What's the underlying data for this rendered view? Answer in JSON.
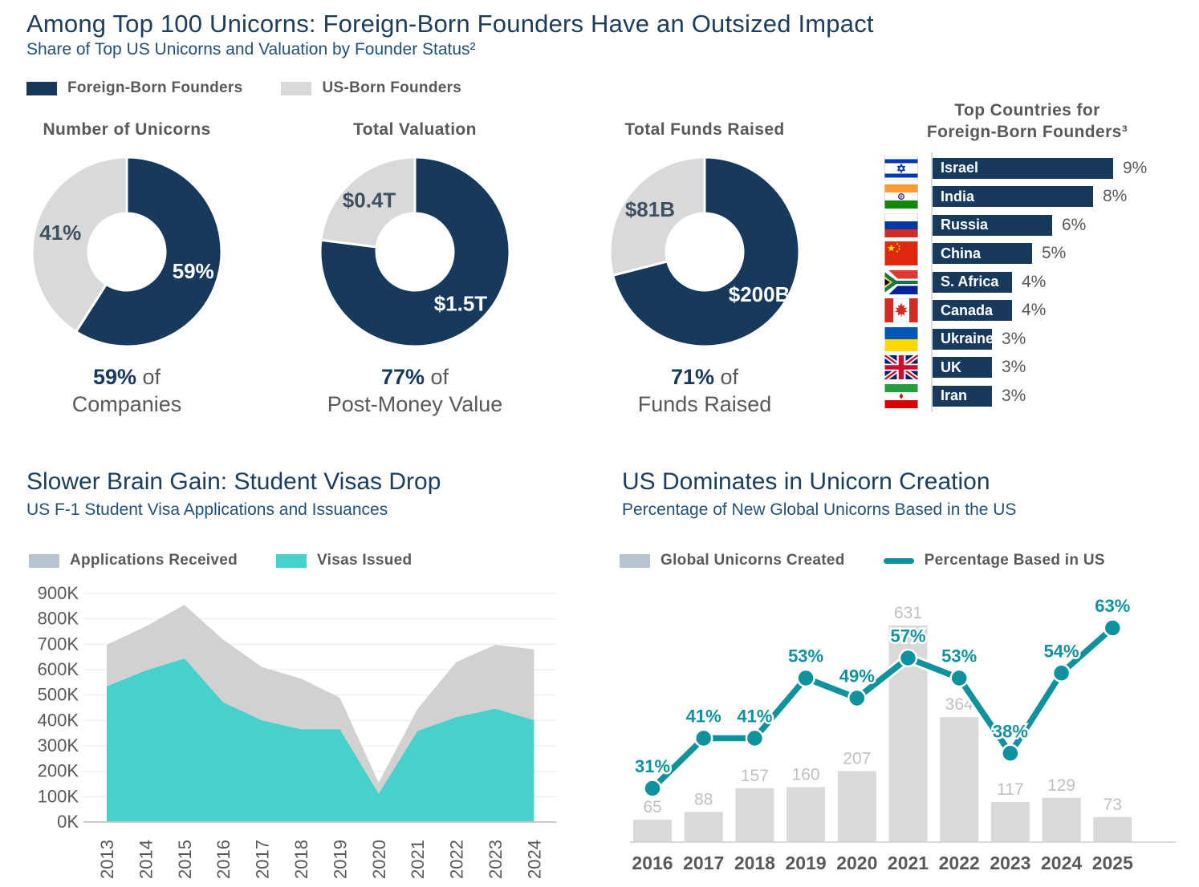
{
  "colors": {
    "navy": "#17395c",
    "donut_gray": "#d9d9d9",
    "legend_gray_blue": "#b8c4d0",
    "area_gray": "#d1d1d1",
    "teal_area": "#46d1cd",
    "teal_line": "#0f929e",
    "text_gray": "#595959",
    "bar_value_gray": "#c0c0c0",
    "slice_dark_label": "#3f5061"
  },
  "header": {
    "title": "Among Top 100 Unicorns: Foreign-Born Founders Have an Outsized Impact",
    "subtitle": "Share of Top US Unicorns and Valuation by Founder Status²",
    "legend": [
      {
        "label": "Foreign-Born Founders",
        "color": "#17395c"
      },
      {
        "label": "US-Born Founders",
        "color": "#d9d9d9"
      }
    ]
  },
  "chart_data": [
    {
      "id": "unicorn-count-donut",
      "type": "pie",
      "title": "Number of Unicorns",
      "series": [
        "Foreign-Born Founders",
        "US-Born Founders"
      ],
      "values": [
        59,
        41
      ],
      "slice_labels": [
        "59%",
        "41%"
      ],
      "colors": [
        "#17395c",
        "#d9d9d9"
      ],
      "label_colors": [
        "#ffffff",
        "#3f5061"
      ],
      "caption": {
        "highlight": "59%",
        "rest": "of",
        "line2": "Companies"
      }
    },
    {
      "id": "valuation-donut",
      "type": "pie",
      "title": "Total Valuation",
      "series": [
        "Foreign-Born Founders",
        "US-Born Founders"
      ],
      "values": [
        77,
        23
      ],
      "slice_labels": [
        "$1.5T",
        "$0.4T"
      ],
      "colors": [
        "#17395c",
        "#d9d9d9"
      ],
      "label_colors": [
        "#ffffff",
        "#3f5061"
      ],
      "caption": {
        "highlight": "77%",
        "rest": "of",
        "line2": "Post-Money Value"
      }
    },
    {
      "id": "funds-raised-donut",
      "type": "pie",
      "title": "Total Funds Raised",
      "series": [
        "Foreign-Born Founders",
        "US-Born Founders"
      ],
      "values": [
        71,
        29
      ],
      "slice_labels": [
        "$200B",
        "$81B"
      ],
      "colors": [
        "#17395c",
        "#d9d9d9"
      ],
      "label_colors": [
        "#ffffff",
        "#3f5061"
      ],
      "caption": {
        "highlight": "71%",
        "rest": "of",
        "line2": "Funds Raised"
      }
    },
    {
      "id": "top-countries-bar",
      "type": "bar",
      "orientation": "horizontal",
      "title_lines": [
        "Top Countries for",
        "Foreign-Born Founders³"
      ],
      "categories": [
        "Israel",
        "India",
        "Russia",
        "China",
        "S. Africa",
        "Canada",
        "Ukraine",
        "UK",
        "Iran"
      ],
      "values": [
        9,
        8,
        6,
        5,
        4,
        4,
        3,
        3,
        3
      ],
      "value_labels": [
        "9%",
        "8%",
        "6%",
        "5%",
        "4%",
        "4%",
        "3%",
        "3%",
        "3%"
      ],
      "flags": [
        "israel",
        "india",
        "russia",
        "china",
        "south-africa",
        "canada",
        "ukraine",
        "uk",
        "iran"
      ],
      "bar_color": "#17395c"
    },
    {
      "id": "f1-visa-area",
      "type": "area",
      "title": "Slower Brain Gain: Student Visas Drop",
      "subtitle": "US F-1 Student Visa Applications and Issuances",
      "x": [
        2013,
        2014,
        2015,
        2016,
        2017,
        2018,
        2019,
        2020,
        2021,
        2022,
        2023,
        2024
      ],
      "ylim": [
        0,
        900
      ],
      "ytick_step": 100,
      "y_unit": "K",
      "grid": true,
      "series": [
        {
          "name": "Applications Received",
          "color": "#d1d1d1",
          "legend_color": "#b8c4d0",
          "values": [
            698,
            770,
            855,
            718,
            610,
            565,
            490,
            155,
            445,
            630,
            698,
            680
          ]
        },
        {
          "name": "Visas Issued",
          "color": "#46d1cd",
          "legend_color": "#46d1cd",
          "values": [
            534,
            596,
            644,
            471,
            400,
            365,
            365,
            111,
            358,
            413,
            446,
            401
          ]
        }
      ]
    },
    {
      "id": "us-unicorn-share-combo",
      "type": "bar+line",
      "title": "US Dominates in Unicorn Creation",
      "subtitle": "Percentage of New Global Unicorns Based in the US",
      "x": [
        2016,
        2017,
        2018,
        2019,
        2020,
        2021,
        2022,
        2023,
        2024,
        2025
      ],
      "bars": {
        "name": "Global Unicorns Created",
        "color": "#d9d9d9",
        "legend_color": "#b8c4d0",
        "values": [
          65,
          88,
          157,
          160,
          207,
          631,
          364,
          117,
          129,
          73
        ]
      },
      "line": {
        "name": "Percentage Based in US",
        "color": "#0f929e",
        "values": [
          31,
          41,
          41,
          53,
          49,
          57,
          53,
          38,
          54,
          63
        ],
        "labels": [
          "31%",
          "41%",
          "41%",
          "53%",
          "49%",
          "57%",
          "53%",
          "38%",
          "54%",
          "63%"
        ]
      }
    }
  ]
}
